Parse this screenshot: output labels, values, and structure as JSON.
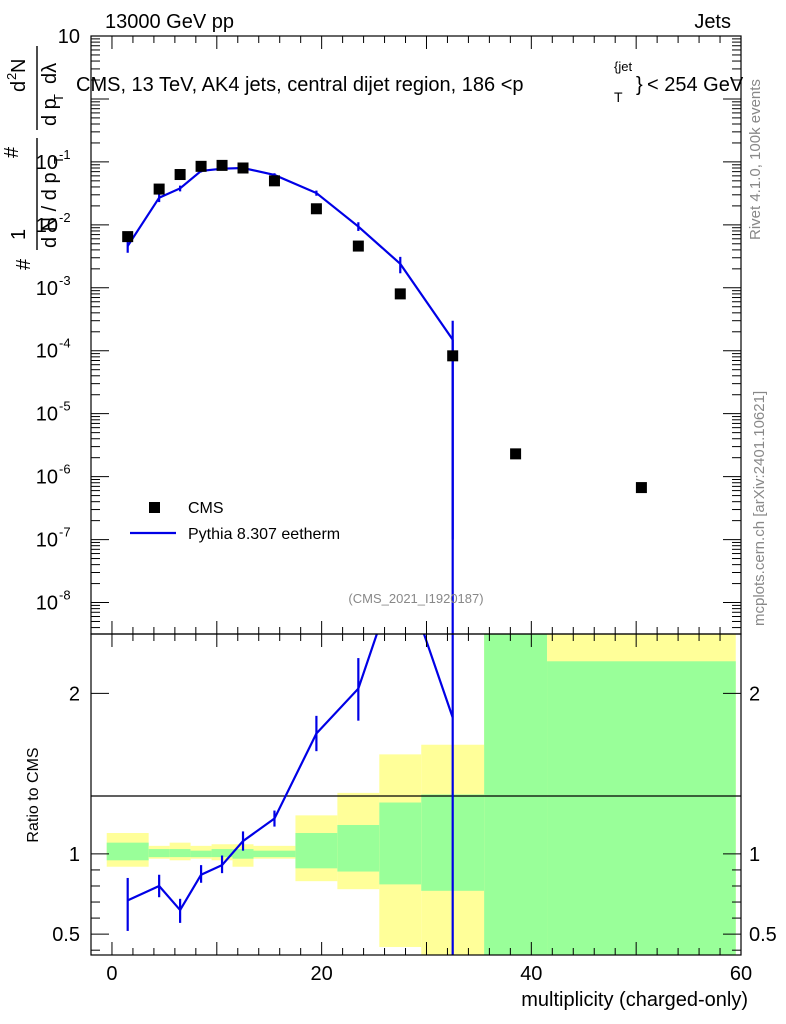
{
  "header": {
    "left": "13000 GeV pp",
    "right": "Jets"
  },
  "title": {
    "main": "CMS, 13 TeV, AK4 jets, central dijet region, 186 <p",
    "sub_T": "T",
    "sup_jet": "{jet",
    "sup_close": "}",
    "tail": "< 254 GeV"
  },
  "side_labels": {
    "rivet": "Rivet 4.1.0,  100k events",
    "mcplots": "mcplots.cern.ch [arXiv:2401.10621]"
  },
  "analysis_id": "(CMS_2021_I1920187)",
  "legend": {
    "data_label": "CMS",
    "mc_label": "Pythia 8.307 eetherm"
  },
  "y_label_top": {
    "hash1": "#",
    "one": "1",
    "dN": "d N / d p",
    "T": "T",
    "hash2": "#",
    "d2N": "d",
    "two": "2",
    "N": "N",
    "dpT": "d p",
    "T2": "T",
    "dlambda": "dλ"
  },
  "y_ticks_top": [
    {
      "base": "10",
      "exp": "",
      "log": 1
    },
    {
      "base": "10",
      "exp": "-1",
      "log": -1
    },
    {
      "base": "10",
      "exp": "-2",
      "log": -2
    },
    {
      "base": "10",
      "exp": "-3",
      "log": -3
    },
    {
      "base": "10",
      "exp": "-4",
      "log": -4
    },
    {
      "base": "10",
      "exp": "-5",
      "log": -5
    },
    {
      "base": "10",
      "exp": "-6",
      "log": -6
    },
    {
      "base": "10",
      "exp": "-7",
      "log": -7
    },
    {
      "base": "10",
      "exp": "-8",
      "log": -8
    }
  ],
  "ratio": {
    "ylabel": "Ratio to CMS",
    "ticks": [
      {
        "label": "2",
        "value": 2
      },
      {
        "label": "1",
        "value": 1
      },
      {
        "label": "0.5",
        "value": 0.5
      }
    ]
  },
  "colors": {
    "mc": "#0000e6",
    "data": "#000000",
    "band_stat": "#99ff99",
    "band_total": "#ffff99"
  },
  "chart_data": [
    {
      "type": "scatter",
      "title": "CMS, 13 TeV, AK4 jets, central dijet region, 186 < p_T^{jet} < 254 GeV",
      "xlabel": "multiplicity (charged-only)",
      "ylabel": "1/N dN/dλ",
      "xlim": [
        -2,
        60
      ],
      "ylim_log10": [
        -8.5,
        1
      ],
      "yscale": "log",
      "x_ticks": [
        0,
        20,
        40,
        60
      ],
      "legend_position": "lower-left",
      "data_series": {
        "name": "CMS",
        "x": [
          1.5,
          4.5,
          6.5,
          8.5,
          10.5,
          12.5,
          15.5,
          19.5,
          23.5,
          27.5,
          32.5,
          38.5,
          50.5
        ],
        "y": [
          0.0065,
          0.037,
          0.063,
          0.085,
          0.088,
          0.08,
          0.05,
          0.018,
          0.0046,
          0.0008,
          8.3e-05,
          2.3e-06,
          6.7e-07
        ]
      },
      "mc_series": {
        "name": "Pythia 8.307 eetherm",
        "x": [
          1.5,
          4.5,
          6.5,
          8.5,
          10.5,
          12.5,
          15.5,
          19.5,
          23.5,
          27.5,
          32.5
        ],
        "y": [
          0.0046,
          0.027,
          0.038,
          0.072,
          0.078,
          0.08,
          0.062,
          0.032,
          0.0094,
          0.0024,
          0.00015
        ],
        "err_lo": [
          0.0036,
          0.023,
          0.034,
          0.068,
          0.074,
          0.076,
          0.058,
          0.029,
          0.008,
          0.0017,
          1e-07
        ],
        "err_hi": [
          0.0058,
          0.031,
          0.042,
          0.076,
          0.082,
          0.084,
          0.066,
          0.035,
          0.011,
          0.0031,
          0.0003
        ]
      }
    },
    {
      "type": "line",
      "title": "Ratio to CMS",
      "ylabel": "Ratio to CMS",
      "xlabel": "multiplicity (charged-only)",
      "ylim": [
        0.37,
        2.37
      ],
      "mc_ratio": {
        "x": [
          1.5,
          4.5,
          6.5,
          8.5,
          10.5,
          12.5,
          15.5,
          19.5,
          23.5,
          27.5,
          32.5
        ],
        "y": [
          0.71,
          0.8,
          0.65,
          0.87,
          0.93,
          1.08,
          1.22,
          1.75,
          2.03,
          2.8,
          1.85
        ],
        "err_lo": [
          0.52,
          0.73,
          0.57,
          0.82,
          0.88,
          1.02,
          1.17,
          1.64,
          1.83,
          null,
          null
        ],
        "err_hi": [
          0.85,
          0.87,
          0.72,
          0.93,
          0.99,
          1.14,
          1.27,
          1.86,
          2.22,
          null,
          null
        ]
      },
      "bands": [
        {
          "x0": -0.5,
          "x1": 3.5,
          "stat_lo": 0.96,
          "stat_hi": 1.07,
          "tot_lo": 0.92,
          "tot_hi": 1.13
        },
        {
          "x0": 3.5,
          "x1": 5.5,
          "stat_lo": 0.98,
          "stat_hi": 1.03,
          "tot_lo": 0.97,
          "tot_hi": 1.05
        },
        {
          "x0": 5.5,
          "x1": 7.5,
          "stat_lo": 0.98,
          "stat_hi": 1.03,
          "tot_lo": 0.96,
          "tot_hi": 1.07
        },
        {
          "x0": 7.5,
          "x1": 9.5,
          "stat_lo": 0.98,
          "stat_hi": 1.02,
          "tot_lo": 0.97,
          "tot_hi": 1.05
        },
        {
          "x0": 9.5,
          "x1": 11.5,
          "stat_lo": 0.98,
          "stat_hi": 1.03,
          "tot_lo": 0.96,
          "tot_hi": 1.06
        },
        {
          "x0": 11.5,
          "x1": 13.5,
          "stat_lo": 0.97,
          "stat_hi": 1.03,
          "tot_lo": 0.92,
          "tot_hi": 1.06
        },
        {
          "x0": 13.5,
          "x1": 17.5,
          "stat_lo": 0.98,
          "stat_hi": 1.02,
          "tot_lo": 0.97,
          "tot_hi": 1.05
        },
        {
          "x0": 17.5,
          "x1": 21.5,
          "stat_lo": 0.91,
          "stat_hi": 1.13,
          "tot_lo": 0.83,
          "tot_hi": 1.24
        },
        {
          "x0": 21.5,
          "x1": 25.5,
          "stat_lo": 0.89,
          "stat_hi": 1.18,
          "tot_lo": 0.78,
          "tot_hi": 1.38
        },
        {
          "x0": 25.5,
          "x1": 29.5,
          "stat_lo": 0.81,
          "stat_hi": 1.32,
          "tot_lo": 0.42,
          "tot_hi": 1.62
        },
        {
          "x0": 29.5,
          "x1": 35.5,
          "stat_lo": 0.77,
          "stat_hi": 1.37,
          "tot_lo": 0.3,
          "tot_hi": 1.68
        },
        {
          "x0": 35.5,
          "x1": 41.5,
          "stat_lo": 0.3,
          "stat_hi": 2.5,
          "tot_lo": 0.3,
          "tot_hi": 2.5
        },
        {
          "x0": 41.5,
          "x1": 59.5,
          "stat_lo": 0.3,
          "stat_hi": 2.2,
          "tot_lo": 0.3,
          "tot_hi": 2.5
        }
      ]
    }
  ]
}
